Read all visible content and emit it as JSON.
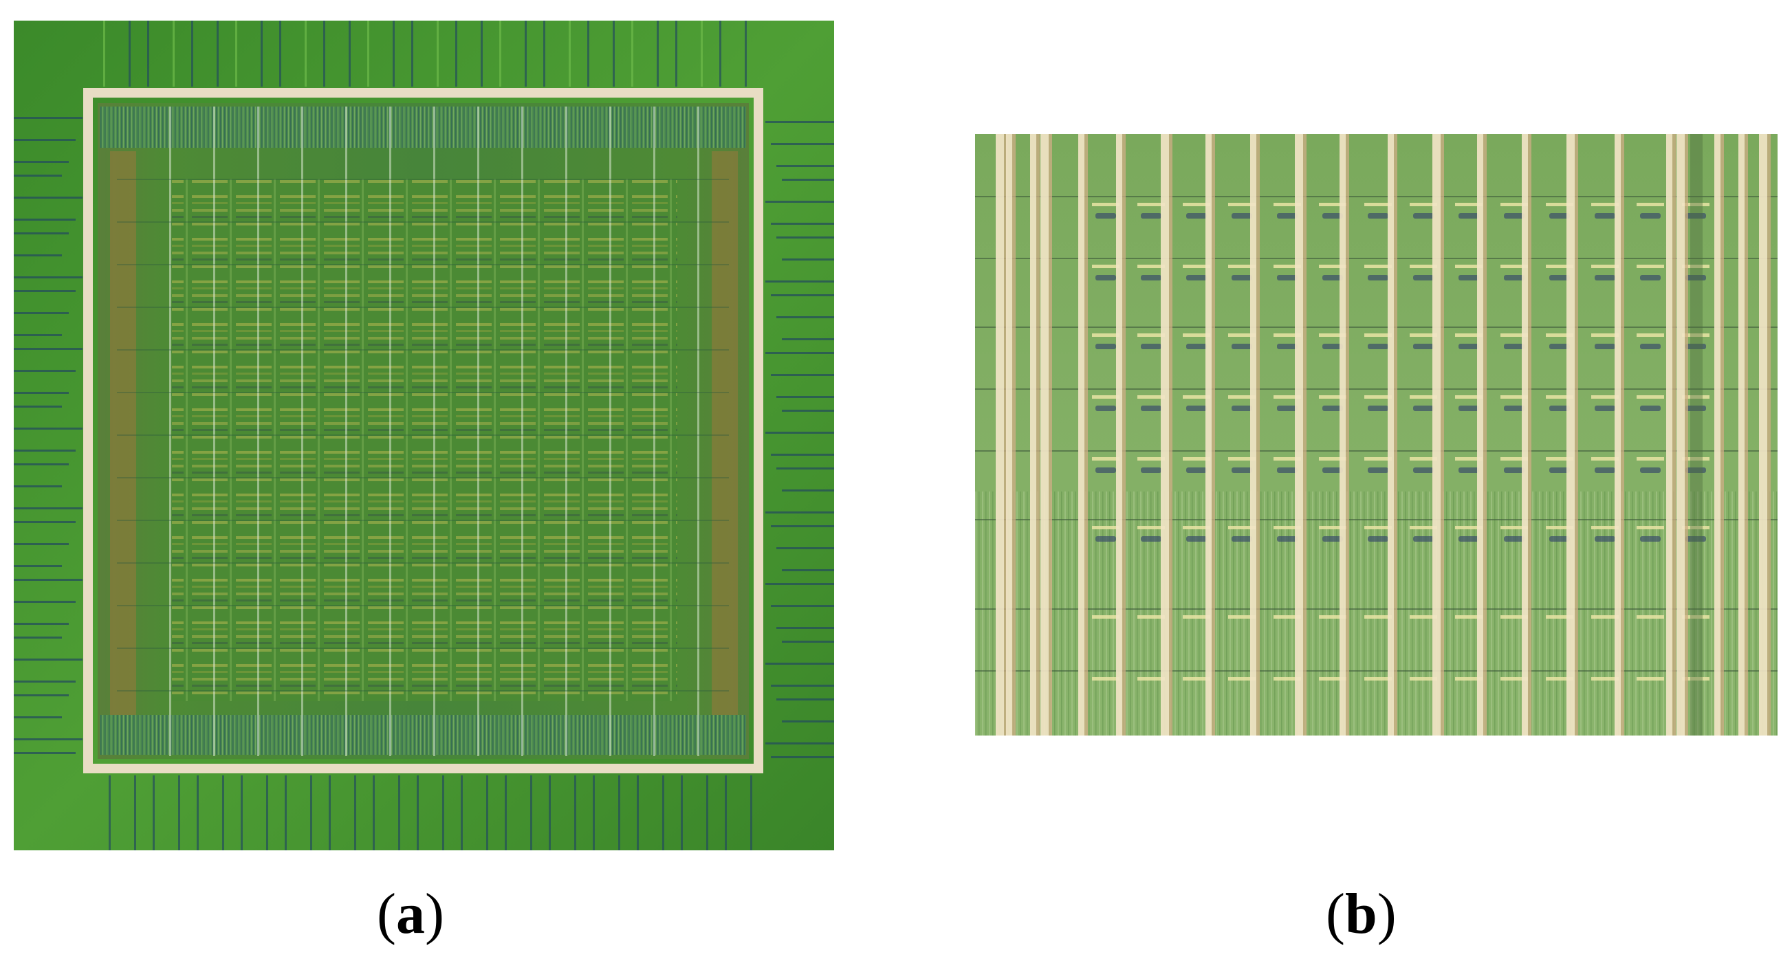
{
  "figure": {
    "panels": [
      {
        "id": "a",
        "caption_open": "(",
        "caption_letter": "a",
        "caption_close": ")"
      },
      {
        "id": "b",
        "caption_open": "(",
        "caption_letter": "b",
        "caption_close": ")"
      }
    ]
  },
  "colors": {
    "die_green": "#3f8f2c",
    "die_green_light": "#56a83a",
    "inner_green": "#4a8a36",
    "seal_ring": "#e8ddc4",
    "zoom_green": "#7fae62",
    "zoom_line_light": "#f0e2c4",
    "zoom_line_tan": "#d4b88f",
    "dark_trace": "#1f3d4a",
    "background": "#ffffff",
    "text": "#000000"
  }
}
